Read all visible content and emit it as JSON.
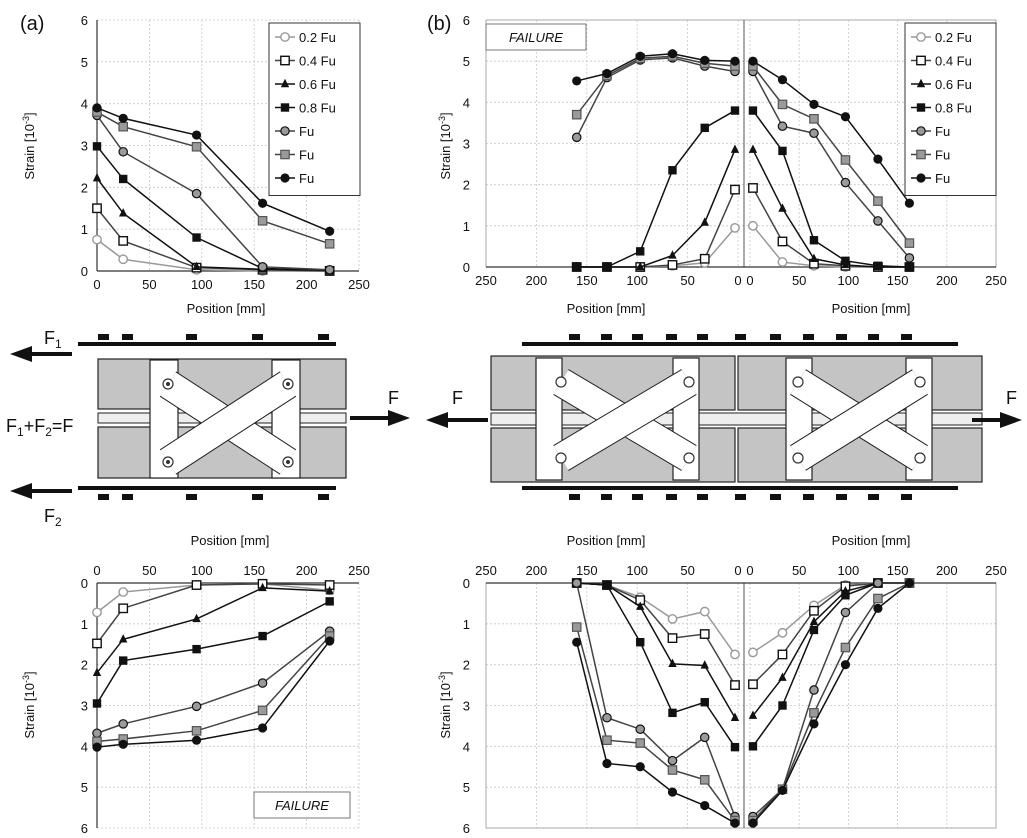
{
  "labels": {
    "panel_a": "(a)",
    "panel_b": "(b)",
    "failure": "FAILURE",
    "position_axis": "Position [mm]",
    "strain_axis": "Strain [10",
    "strain_exp": "-3",
    "strain_close": "]",
    "force_F": "F",
    "force_F1": "F",
    "force_F1_sub": "1",
    "force_F2": "F",
    "force_F2_sub": "2",
    "force_sum": "F",
    "force_sum_sub1": "1",
    "force_sum_mid": "+F",
    "force_sum_sub2": "2",
    "force_sum_end": "=F"
  },
  "colors": {
    "grey": "#999999",
    "black": "#111111",
    "mid": "#444444",
    "block": "#c4c4c4",
    "plate": "#eeeeee"
  },
  "chart_data": [
    {
      "id": "top-a",
      "type": "line",
      "xlabel": "Position [mm]",
      "ylabel": "Strain [10^-3]",
      "xlim": [
        0,
        250
      ],
      "ylim": [
        0,
        6
      ],
      "xticks": [
        "0",
        "50",
        "100",
        "150",
        "200",
        "250"
      ],
      "yticks": [
        "0",
        "1",
        "2",
        "3",
        "4",
        "5",
        "6"
      ],
      "x": [
        0,
        25,
        95,
        158,
        222
      ],
      "series": [
        {
          "name": "0.2 Fu",
          "marker": "circle-open",
          "color": "grey",
          "values": [
            0.75,
            0.28,
            0.03,
            0.0,
            0.0
          ]
        },
        {
          "name": "0.4 Fu",
          "marker": "square-open",
          "color": "mid",
          "values": [
            1.5,
            0.72,
            0.08,
            0.03,
            0.0
          ]
        },
        {
          "name": "0.6 Fu",
          "marker": "triangle",
          "color": "black",
          "values": [
            2.22,
            1.38,
            0.1,
            0.04,
            0.02
          ]
        },
        {
          "name": "0.8 Fu",
          "marker": "square",
          "color": "black",
          "values": [
            2.98,
            2.2,
            0.8,
            0.06,
            0.02
          ]
        },
        {
          "name": "Fu",
          "marker": "circle-grey",
          "color": "mid",
          "values": [
            3.72,
            2.85,
            1.85,
            0.1,
            0.03
          ]
        },
        {
          "name": "Fu",
          "marker": "square-grey",
          "color": "mid",
          "values": [
            3.8,
            3.45,
            2.97,
            1.2,
            0.65
          ]
        },
        {
          "name": "Fu",
          "marker": "circle",
          "color": "black",
          "values": [
            3.9,
            3.65,
            3.25,
            1.62,
            0.95
          ]
        }
      ]
    },
    {
      "id": "top-b",
      "type": "line",
      "xlabel": "Position [mm]",
      "ylabel": "Strain [10^-3]",
      "ylim": [
        0,
        6
      ],
      "xticks_left": [
        "250",
        "200",
        "150",
        "100",
        "50",
        "0"
      ],
      "xticks_right": [
        "0",
        "50",
        "100",
        "150",
        "200",
        "250"
      ],
      "yticks": [
        "0",
        "1",
        "2",
        "3",
        "4",
        "5",
        "6"
      ],
      "x_left": [
        160,
        130,
        97,
        65,
        33,
        3
      ],
      "x_right": [
        3,
        33,
        65,
        97,
        130,
        162
      ],
      "series": [
        {
          "name": "0.2 Fu",
          "marker": "circle-open",
          "color": "grey",
          "left": [
            0.0,
            0.0,
            0.0,
            0.03,
            0.1,
            0.95
          ],
          "right": [
            1.0,
            0.12,
            0.03,
            0.0,
            0.0,
            0.0
          ]
        },
        {
          "name": "0.4 Fu",
          "marker": "square-open",
          "color": "mid",
          "left": [
            0.0,
            0.0,
            0.0,
            0.05,
            0.2,
            1.88
          ],
          "right": [
            1.92,
            0.62,
            0.08,
            0.03,
            0.0,
            0.0
          ]
        },
        {
          "name": "0.6 Fu",
          "marker": "triangle",
          "color": "black",
          "left": [
            0.0,
            0.0,
            0.0,
            0.28,
            1.08,
            2.85
          ],
          "right": [
            2.85,
            1.42,
            0.2,
            0.05,
            0.0,
            0.0
          ]
        },
        {
          "name": "0.8 Fu",
          "marker": "square",
          "color": "black",
          "left": [
            0.0,
            0.0,
            0.38,
            2.35,
            3.38,
            3.8
          ],
          "right": [
            3.8,
            2.82,
            0.65,
            0.15,
            0.03,
            0.0
          ]
        },
        {
          "name": "Fu",
          "marker": "circle-grey",
          "color": "mid",
          "left": [
            3.15,
            4.6,
            5.03,
            5.08,
            4.88,
            4.75
          ],
          "right": [
            4.75,
            3.42,
            3.25,
            2.05,
            1.12,
            0.22
          ]
        },
        {
          "name": "Fu",
          "marker": "square-grey",
          "color": "mid",
          "left": [
            3.7,
            4.65,
            5.07,
            5.12,
            4.95,
            4.88
          ],
          "right": [
            4.88,
            3.95,
            3.6,
            2.6,
            1.6,
            0.58
          ]
        },
        {
          "name": "Fu",
          "marker": "circle",
          "color": "black",
          "left": [
            4.52,
            4.7,
            5.12,
            5.18,
            5.02,
            5.0
          ],
          "right": [
            5.0,
            4.55,
            3.95,
            3.65,
            2.62,
            1.55
          ]
        }
      ]
    },
    {
      "id": "bottom-a",
      "type": "line",
      "xlabel": "Position [mm]",
      "ylabel": "Strain [10^-3]",
      "xlim": [
        0,
        250
      ],
      "ylim": [
        0,
        6
      ],
      "y_inverted": true,
      "xticks": [
        "0",
        "50",
        "100",
        "150",
        "200",
        "250"
      ],
      "yticks": [
        "0",
        "1",
        "2",
        "3",
        "4",
        "5",
        "6"
      ],
      "x": [
        0,
        25,
        95,
        158,
        222
      ],
      "series": [
        {
          "name": "0.2 Fu",
          "marker": "circle-open",
          "color": "grey",
          "values": [
            0.72,
            0.22,
            0.05,
            0.02,
            0.18
          ]
        },
        {
          "name": "0.4 Fu",
          "marker": "square-open",
          "color": "mid",
          "values": [
            1.48,
            0.62,
            0.05,
            0.02,
            0.05
          ]
        },
        {
          "name": "0.6 Fu",
          "marker": "triangle",
          "color": "black",
          "values": [
            2.2,
            1.38,
            0.88,
            0.12,
            0.2
          ]
        },
        {
          "name": "0.8 Fu",
          "marker": "square",
          "color": "black",
          "values": [
            2.95,
            1.9,
            1.62,
            1.3,
            0.45
          ]
        },
        {
          "name": "Fu",
          "marker": "circle-grey",
          "color": "mid",
          "values": [
            3.68,
            3.45,
            3.02,
            2.45,
            1.18
          ]
        },
        {
          "name": "Fu",
          "marker": "square-grey",
          "color": "mid",
          "values": [
            3.88,
            3.82,
            3.62,
            3.12,
            1.3
          ]
        },
        {
          "name": "Fu",
          "marker": "circle",
          "color": "black",
          "values": [
            4.02,
            3.95,
            3.85,
            3.55,
            1.42
          ]
        }
      ]
    },
    {
      "id": "bottom-b",
      "type": "line",
      "xlabel": "Position [mm]",
      "ylabel": "Strain [10^-3]",
      "ylim": [
        0,
        6
      ],
      "y_inverted": true,
      "xticks_left": [
        "250",
        "200",
        "150",
        "100",
        "50",
        "0"
      ],
      "xticks_right": [
        "0",
        "50",
        "100",
        "150",
        "200",
        "250"
      ],
      "yticks": [
        "0",
        "1",
        "2",
        "3",
        "4",
        "5",
        "6"
      ],
      "x_left": [
        160,
        130,
        97,
        65,
        33,
        3
      ],
      "x_right": [
        3,
        33,
        65,
        97,
        130,
        162
      ],
      "series": [
        {
          "name": "0.2 Fu",
          "marker": "circle-open",
          "color": "grey",
          "left": [
            0.0,
            0.05,
            0.35,
            0.88,
            0.7,
            1.75
          ],
          "right": [
            1.7,
            1.22,
            0.55,
            0.05,
            0.0,
            0.0
          ]
        },
        {
          "name": "0.4 Fu",
          "marker": "square-open",
          "color": "mid",
          "left": [
            0.0,
            0.05,
            0.42,
            1.35,
            1.25,
            2.5
          ],
          "right": [
            2.48,
            1.75,
            0.68,
            0.08,
            0.0,
            0.0
          ]
        },
        {
          "name": "0.6 Fu",
          "marker": "triangle",
          "color": "black",
          "left": [
            0.0,
            0.05,
            0.58,
            1.98,
            2.02,
            3.3
          ],
          "right": [
            3.25,
            2.32,
            0.95,
            0.2,
            0.0,
            0.0
          ]
        },
        {
          "name": "0.8 Fu",
          "marker": "square",
          "color": "black",
          "left": [
            0.0,
            0.05,
            1.45,
            3.18,
            2.92,
            4.02
          ],
          "right": [
            4.0,
            3.0,
            1.15,
            0.3,
            0.0,
            0.0
          ]
        },
        {
          "name": "Fu",
          "marker": "circle-grey",
          "color": "mid",
          "left": [
            0.0,
            3.3,
            3.58,
            4.35,
            3.78,
            5.72
          ],
          "right": [
            5.72,
            5.05,
            2.62,
            0.72,
            0.0,
            0.0
          ]
        },
        {
          "name": "Fu",
          "marker": "square-grey",
          "color": "mid",
          "left": [
            1.08,
            3.85,
            3.92,
            4.58,
            4.82,
            5.82
          ],
          "right": [
            5.82,
            5.05,
            3.18,
            1.58,
            0.38,
            0.0
          ]
        },
        {
          "name": "Fu",
          "marker": "circle",
          "color": "black",
          "left": [
            1.45,
            4.42,
            4.5,
            5.12,
            5.45,
            5.88
          ],
          "right": [
            5.88,
            5.08,
            3.45,
            2.0,
            0.62,
            0.0
          ]
        }
      ]
    }
  ]
}
